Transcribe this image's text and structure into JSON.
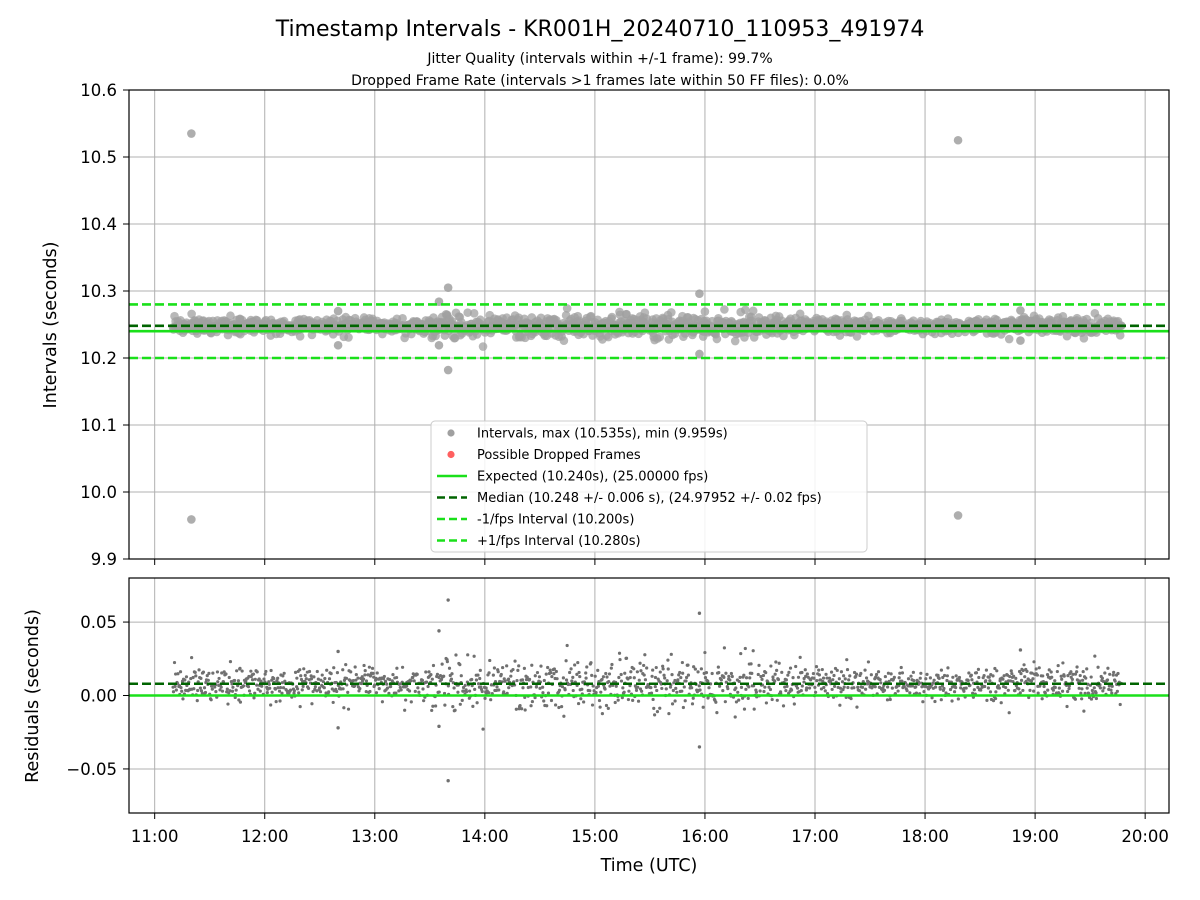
{
  "chart_data": {
    "type": "scatter",
    "title": "Timestamp Intervals - KR001H_20240710_110953_491974",
    "subtitle_1": "Jitter Quality (intervals within +/-1 frame): 99.7%",
    "subtitle_2": "Dropped Frame Rate (intervals >1 frames late within 50 FF files): 0.0%",
    "xlabel": "Time (UTC)",
    "x_range": [
      "10:46",
      "20:13"
    ],
    "x_ticks": [
      "11:00",
      "12:00",
      "13:00",
      "14:00",
      "15:00",
      "16:00",
      "17:00",
      "18:00",
      "19:00",
      "20:00"
    ],
    "grid": true,
    "top_panel": {
      "ylabel": "Intervals (seconds)",
      "ylim": [
        9.9,
        10.6
      ],
      "y_ticks": [
        "9.9",
        "10.0",
        "10.1",
        "10.2",
        "10.3",
        "10.4",
        "10.5",
        "10.6"
      ],
      "outliers": [
        {
          "time": "11:20",
          "value": 10.535
        },
        {
          "time": "11:20",
          "value": 9.959
        },
        {
          "time": "18:18",
          "value": 10.525
        },
        {
          "time": "18:18",
          "value": 9.965
        },
        {
          "time": "13:40",
          "value": 10.305
        },
        {
          "time": "13:40",
          "value": 10.182
        },
        {
          "time": "13:35",
          "value": 10.284
        },
        {
          "time": "13:35",
          "value": 10.219
        },
        {
          "time": "15:57",
          "value": 10.296
        },
        {
          "time": "15:57",
          "value": 10.206
        },
        {
          "time": "12:40",
          "value": 10.219
        },
        {
          "time": "12:40",
          "value": 10.27
        },
        {
          "time": "18:52",
          "value": 10.271
        },
        {
          "time": "18:52",
          "value": 10.226
        }
      ],
      "bulk_series": {
        "time_start": "11:10",
        "time_end": "19:47",
        "center": 10.248,
        "spread": 0.006
      },
      "lines": {
        "expected": 10.24,
        "median": 10.248,
        "minus_1fps": 10.2,
        "plus_1fps": 10.28
      },
      "legend": {
        "position": "lower center",
        "items": [
          {
            "label": "Intervals, max (10.535s), min (9.959s)",
            "marker": "point",
            "color": "#a0a0a0"
          },
          {
            "label": "Possible Dropped Frames",
            "marker": "point",
            "color": "#ff6060"
          },
          {
            "label": "Expected (10.240s), (25.00000 fps)",
            "marker": "line-solid",
            "color": "#1ae01a"
          },
          {
            "label": "Median (10.248 +/- 0.006 s), (24.97952 +/- 0.02 fps)",
            "marker": "line-dashed",
            "color": "#006400"
          },
          {
            "label": "-1/fps Interval (10.200s)",
            "marker": "line-dashed",
            "color": "#1ae01a"
          },
          {
            "label": "+1/fps Interval (10.280s)",
            "marker": "line-dashed",
            "color": "#1ae01a"
          }
        ]
      }
    },
    "bottom_panel": {
      "ylabel": "Residuals (seconds)",
      "ylim": [
        -0.08,
        0.08
      ],
      "y_ticks": [
        "−0.05",
        "0.00",
        "0.05"
      ],
      "y_tick_values": [
        -0.05,
        0.0,
        0.05
      ],
      "outliers": [
        {
          "time": "13:40",
          "value": 0.065
        },
        {
          "time": "13:40",
          "value": -0.058
        },
        {
          "time": "13:35",
          "value": 0.044
        },
        {
          "time": "13:35",
          "value": -0.021
        },
        {
          "time": "15:57",
          "value": 0.056
        },
        {
          "time": "15:57",
          "value": -0.035
        },
        {
          "time": "12:40",
          "value": -0.022
        },
        {
          "time": "12:40",
          "value": 0.03
        },
        {
          "time": "18:52",
          "value": 0.031
        }
      ],
      "lines": {
        "zero": 0.0,
        "median_offset": 0.008
      }
    },
    "colors": {
      "points_top": "#a0a0a0",
      "points_bottom": "#707070",
      "expected": "#1ae01a",
      "median": "#006400",
      "grid": "#b0b0b0"
    }
  }
}
